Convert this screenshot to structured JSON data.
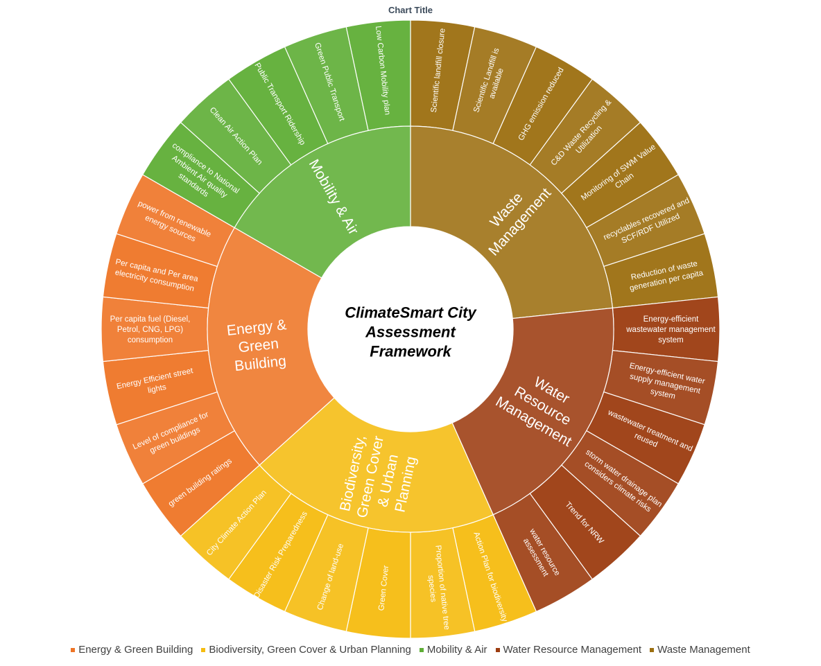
{
  "chart_data": {
    "type": "sunburst",
    "title": "Chart Title",
    "center_label": [
      "ClimateSmart City",
      "Assessment",
      "Framework"
    ],
    "start_angle_deg": 0,
    "categories": [
      {
        "name": "Waste Management",
        "label_lines": [
          "Waste",
          "Management"
        ],
        "color": "#9c6f10",
        "children": [
          {
            "lines": [
              "Scientific landfill closure"
            ]
          },
          {
            "lines": [
              "Scientific Landfill is",
              "available"
            ]
          },
          {
            "lines": [
              "GHG emission reduced"
            ]
          },
          {
            "lines": [
              "C&D Waste Recycling &",
              "Utilization"
            ]
          },
          {
            "lines": [
              "Monitoring of SWM Value",
              "Chain"
            ]
          },
          {
            "lines": [
              "recyclables recovered and",
              "SCF/RDF Utilized"
            ]
          },
          {
            "lines": [
              "Reduction of waste",
              "generation per capita"
            ]
          }
        ]
      },
      {
        "name": "Water Resource  Management",
        "label_lines": [
          "Water",
          "Resource",
          "Management"
        ],
        "color": "#9c3c10",
        "children": [
          {
            "lines": [
              "Energy-efficient",
              "wastewater management",
              "system"
            ]
          },
          {
            "lines": [
              "Energy-efficient water",
              "supply management",
              "system"
            ]
          },
          {
            "lines": [
              "wastewater treatment and",
              "reused"
            ]
          },
          {
            "lines": [
              "storm water drainage plan",
              "considers climate risks"
            ]
          },
          {
            "lines": [
              "Trend for NRW"
            ]
          },
          {
            "lines": [
              "water resource",
              "assessment"
            ]
          }
        ]
      },
      {
        "name": "Biodiversity, Green Cover & Urban Planning",
        "label_lines": [
          "Biodiversity,",
          "Green Cover",
          "& Urban",
          "Planning"
        ],
        "color": "#f5bc10",
        "children": [
          {
            "lines": [
              "Action Plan for biodiversity"
            ]
          },
          {
            "lines": [
              "Proportion of native tree",
              "species"
            ]
          },
          {
            "lines": [
              "Green Cover"
            ]
          },
          {
            "lines": [
              "Change of land-use"
            ]
          },
          {
            "lines": [
              "Disaster Risk Preparedness"
            ]
          },
          {
            "lines": [
              "City Climate Action Plan"
            ]
          }
        ]
      },
      {
        "name": "Energy & Green Building",
        "label_lines": [
          "Energy &",
          "Green",
          "Building"
        ],
        "color": "#ee7526",
        "children": [
          {
            "lines": [
              "green building ratings"
            ]
          },
          {
            "lines": [
              "Level of compliance for",
              "green buildings"
            ]
          },
          {
            "lines": [
              "Energy Efficient street",
              "lights"
            ]
          },
          {
            "lines": [
              "Per capita fuel (Diesel,",
              "Petrol, CNG, LPG)",
              "consumption"
            ]
          },
          {
            "lines": [
              "Per capita and Per area",
              "electricity consumption"
            ]
          },
          {
            "lines": [
              "power from renewable",
              "energy sources"
            ]
          }
        ]
      },
      {
        "name": "Mobility & Air",
        "label_lines": [
          "Mobility & Air"
        ],
        "color": "#5fae36",
        "children": [
          {
            "lines": [
              "compliance to National",
              "Ambient Air quality",
              "standards"
            ]
          },
          {
            "lines": [
              "Clean Air Action Plan"
            ]
          },
          {
            "lines": [
              "Public Transport Ridership"
            ]
          },
          {
            "lines": [
              "Green Public Transport"
            ]
          },
          {
            "lines": [
              "Low Carbon Mobility plan"
            ]
          }
        ]
      }
    ],
    "legend": [
      {
        "label": "Energy & Green Building",
        "color": "#ee7526"
      },
      {
        "label": "Biodiversity, Green Cover & Urban Planning",
        "color": "#f5bc10"
      },
      {
        "label": "Mobility & Air",
        "color": "#5fae36"
      },
      {
        "label": "Water Resource  Management",
        "color": "#9c3c10"
      },
      {
        "label": "Waste Management",
        "color": "#9c6f10"
      }
    ],
    "legend_position": "bottom"
  }
}
